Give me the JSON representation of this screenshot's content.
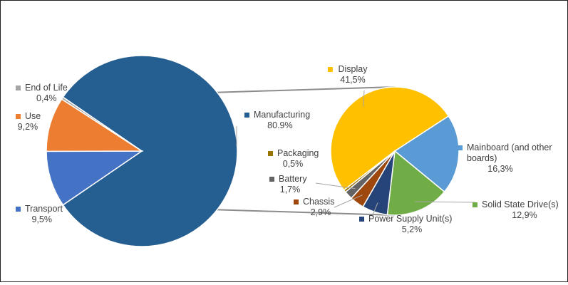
{
  "chart_data": [
    {
      "type": "pie",
      "title": "",
      "legend_placement": "labels",
      "slices": [
        {
          "label": "Manufacturing",
          "value_label": "80.9%",
          "value": 80.9,
          "color": "#255E91"
        },
        {
          "label": "Transport",
          "value_label": "9,5%",
          "value": 9.5,
          "color": "#4472C4"
        },
        {
          "label": "Use",
          "value_label": "9,2%",
          "value": 9.2,
          "color": "#ED7D31"
        },
        {
          "label": "End of Life",
          "value_label": "0,4%",
          "value": 0.4,
          "color": "#A5A5A5"
        }
      ],
      "exploded_slice": "Manufacturing"
    },
    {
      "type": "pie",
      "title": "",
      "legend_placement": "labels",
      "breakdown_of": "Manufacturing",
      "slices": [
        {
          "label": "Display",
          "value_label": "41,5%",
          "value": 41.5,
          "color": "#FFC000"
        },
        {
          "label": "Mainboard (and other boards)",
          "value_label": "16,3%",
          "value": 16.3,
          "color": "#5B9BD5"
        },
        {
          "label": "Solid State Drive(s)",
          "value_label": "12,9%",
          "value": 12.9,
          "color": "#70AD47"
        },
        {
          "label": "Power Supply Unit(s)",
          "value_label": "5,2%",
          "value": 5.2,
          "color": "#264478"
        },
        {
          "label": "Chassis",
          "value_label": "2,9%",
          "value": 2.9,
          "color": "#9E480E"
        },
        {
          "label": "Battery",
          "value_label": "1,7%",
          "value": 1.7,
          "color": "#636363"
        },
        {
          "label": "Packaging",
          "value_label": "0,5%",
          "value": 0.5,
          "color": "#997300"
        }
      ]
    }
  ]
}
